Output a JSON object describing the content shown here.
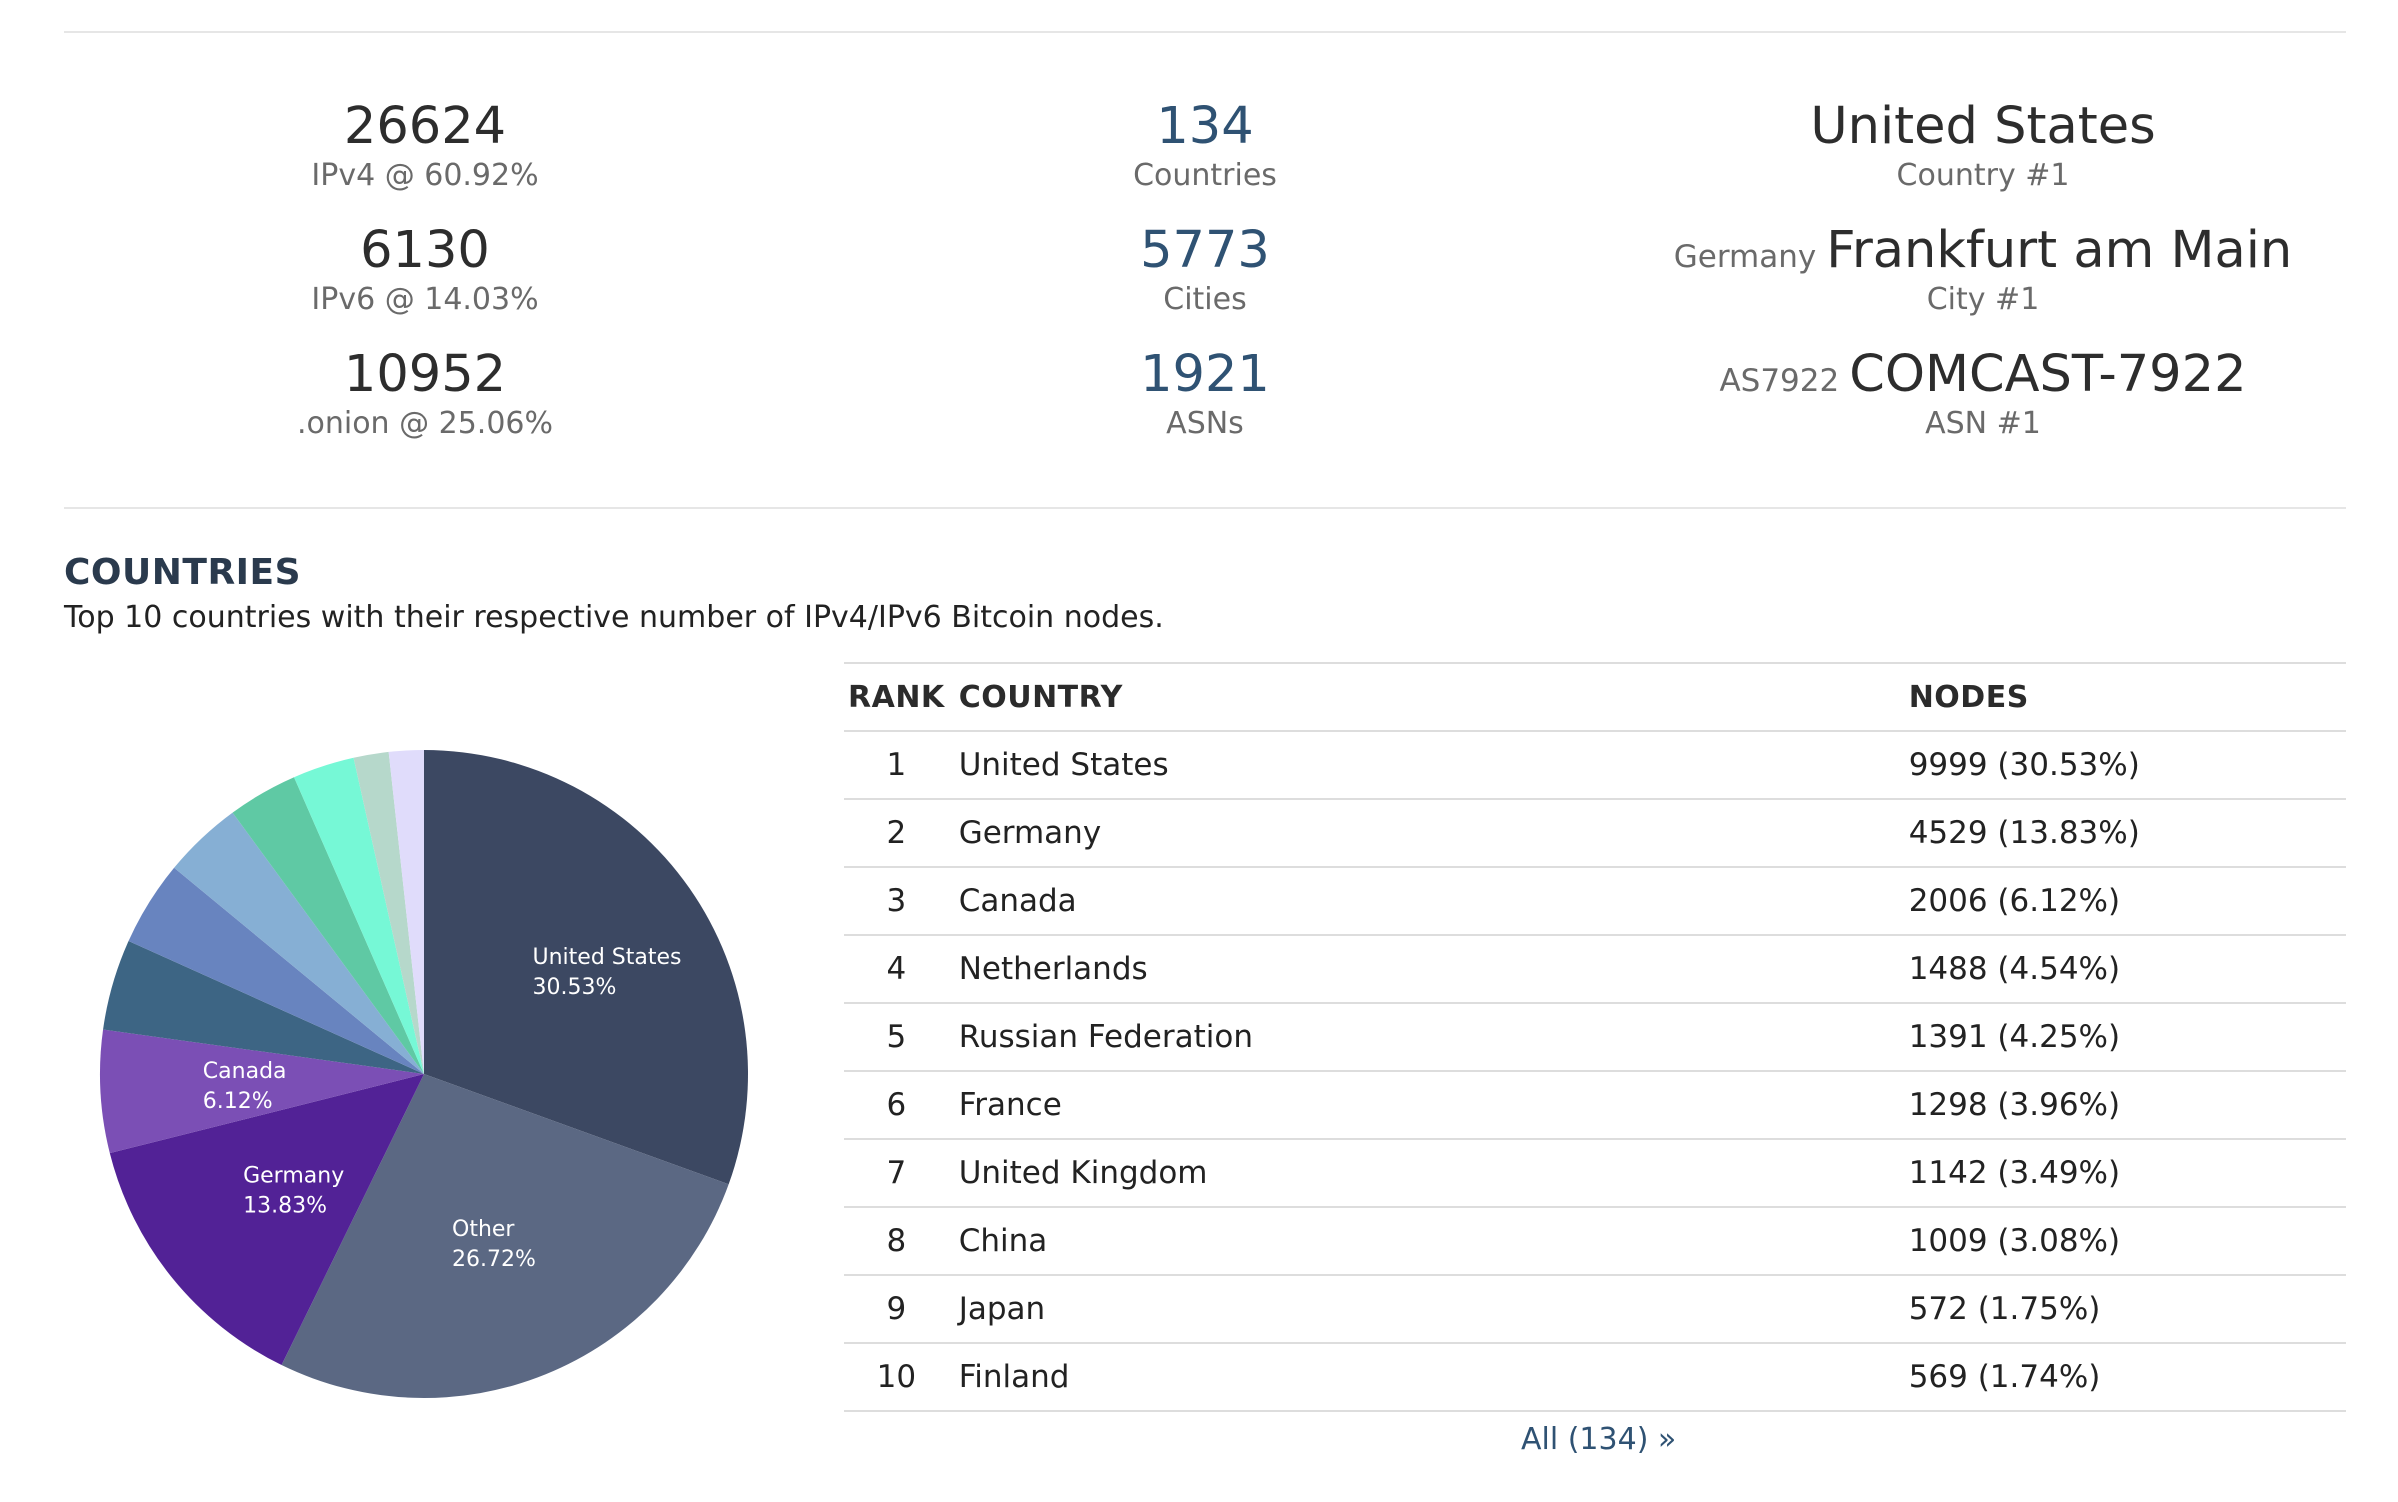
{
  "stats": {
    "ipv4": {
      "value": "26624",
      "label": "IPv4 @ 60.92%"
    },
    "ipv6": {
      "value": "6130",
      "label": "IPv6 @ 14.03%"
    },
    "onion": {
      "value": "10952",
      "label": ".onion @ 25.06%"
    },
    "countries": {
      "value": "134",
      "label": "Countries"
    },
    "cities": {
      "value": "5773",
      "label": "Cities"
    },
    "asns": {
      "value": "1921",
      "label": "ASNs"
    },
    "top_country": {
      "value": "United States",
      "label": "Country #1"
    },
    "top_city": {
      "prefix": "Germany",
      "value": "Frankfurt am Main",
      "label": "City #1"
    },
    "top_asn": {
      "prefix": "AS7922",
      "value": "COMCAST-7922",
      "label": "ASN #1"
    }
  },
  "section": {
    "title": "COUNTRIES",
    "description": "Top 10 countries with their respective number of IPv4/IPv6 Bitcoin nodes."
  },
  "table": {
    "headers": {
      "rank": "RANK",
      "country": "COUNTRY",
      "nodes": "NODES"
    },
    "rows": [
      {
        "rank": "1",
        "country": "United States",
        "nodes": "9999 (30.53%)"
      },
      {
        "rank": "2",
        "country": "Germany",
        "nodes": "4529 (13.83%)"
      },
      {
        "rank": "3",
        "country": "Canada",
        "nodes": "2006 (6.12%)"
      },
      {
        "rank": "4",
        "country": "Netherlands",
        "nodes": "1488 (4.54%)"
      },
      {
        "rank": "5",
        "country": "Russian Federation",
        "nodes": "1391 (4.25%)"
      },
      {
        "rank": "6",
        "country": "France",
        "nodes": "1298 (3.96%)"
      },
      {
        "rank": "7",
        "country": "United Kingdom",
        "nodes": "1142 (3.49%)"
      },
      {
        "rank": "8",
        "country": "China",
        "nodes": "1009 (3.08%)"
      },
      {
        "rank": "9",
        "country": "Japan",
        "nodes": "572 (1.75%)"
      },
      {
        "rank": "10",
        "country": "Finland",
        "nodes": "569 (1.74%)"
      }
    ],
    "all_link": "All (134) »"
  },
  "chart_data": {
    "type": "pie",
    "slices": [
      {
        "name": "United States",
        "value": 30.53,
        "color": "#3c4862",
        "label": "United States",
        "pct_label": "30.53%"
      },
      {
        "name": "Other",
        "value": 26.72,
        "color": "#5b6883",
        "label": "Other",
        "pct_label": "26.72%"
      },
      {
        "name": "Germany",
        "value": 13.83,
        "color": "#522296",
        "label": "Germany",
        "pct_label": "13.83%"
      },
      {
        "name": "Canada",
        "value": 6.12,
        "color": "#7b4fb5",
        "label": "Canada",
        "pct_label": "6.12%"
      },
      {
        "name": "Netherlands",
        "value": 4.54,
        "color": "#3d6584",
        "label": "",
        "pct_label": ""
      },
      {
        "name": "Russian Federation",
        "value": 4.25,
        "color": "#6884bf",
        "label": "",
        "pct_label": ""
      },
      {
        "name": "France",
        "value": 3.96,
        "color": "#86afd4",
        "label": "",
        "pct_label": ""
      },
      {
        "name": "United Kingdom",
        "value": 3.49,
        "color": "#5fc9a4",
        "label": "",
        "pct_label": ""
      },
      {
        "name": "China",
        "value": 3.08,
        "color": "#76f8d6",
        "label": "",
        "pct_label": ""
      },
      {
        "name": "Japan",
        "value": 1.75,
        "color": "#b6d8cb",
        "label": "",
        "pct_label": ""
      },
      {
        "name": "Finland",
        "value": 1.74,
        "color": "#e0dcfb",
        "label": "",
        "pct_label": ""
      }
    ]
  }
}
